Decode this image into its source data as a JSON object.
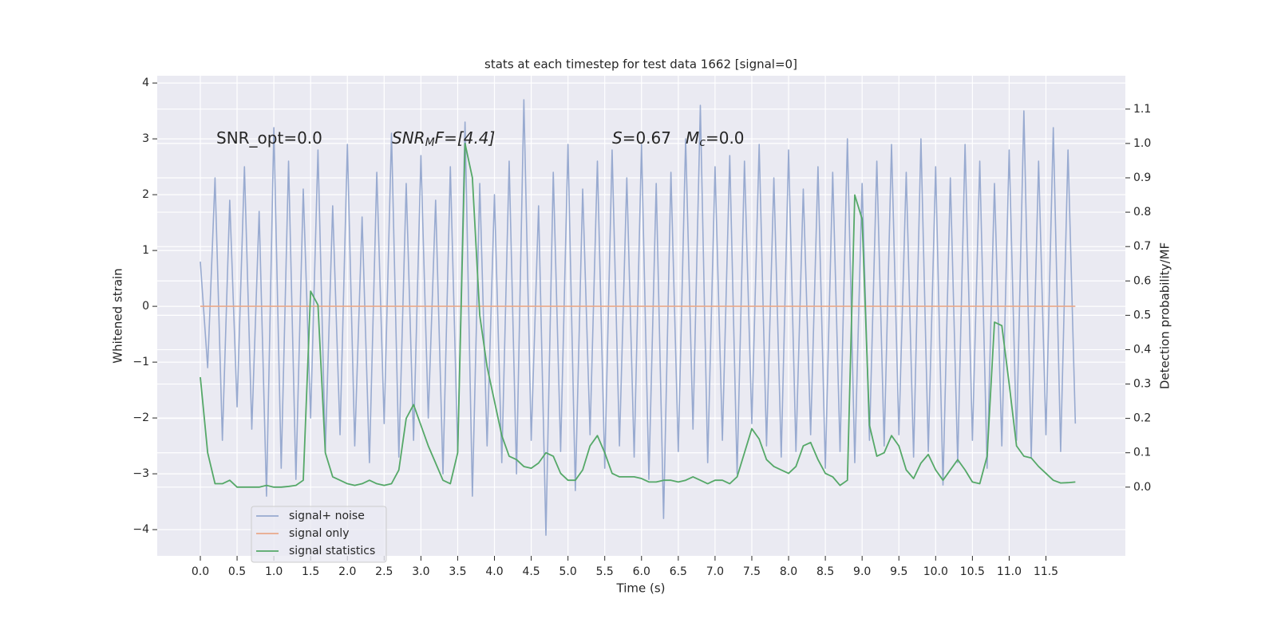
{
  "chart_data": {
    "type": "line",
    "title": "stats at each timestep for test data 1662 [signal=0]",
    "xlabel": "Time (s)",
    "ylabel": "Whitened strain",
    "y2label": "Detection probability/MF",
    "annotations": [
      [
        {
          "text": "SNR_opt=0.0",
          "style": "normal"
        }
      ],
      [
        {
          "text": "SNR",
          "style": "italic"
        },
        {
          "text": "M",
          "style": "italic-sub"
        },
        {
          "text": "F=[4.4]",
          "style": "italic-tail"
        }
      ],
      [
        {
          "text": "S",
          "style": "italic"
        },
        {
          "text": "=0.67",
          "style": "normal"
        }
      ],
      [
        {
          "text": "M",
          "style": "italic"
        },
        {
          "text": "c",
          "style": "italic-sub"
        },
        {
          "text": "=0.0",
          "style": "normal"
        }
      ]
    ],
    "x": [
      0,
      0.1,
      0.2,
      0.3,
      0.4,
      0.5,
      0.6,
      0.7,
      0.8,
      0.9,
      1,
      1.1,
      1.2,
      1.3,
      1.4,
      1.5,
      1.6,
      1.7,
      1.8,
      1.9,
      2,
      2.1,
      2.2,
      2.3,
      2.4,
      2.5,
      2.6,
      2.7,
      2.8,
      2.9,
      3,
      3.1,
      3.2,
      3.3,
      3.4,
      3.5,
      3.6,
      3.7,
      3.8,
      3.9,
      4,
      4.1,
      4.2,
      4.3,
      4.4,
      4.5,
      4.6,
      4.7,
      4.8,
      4.9,
      5,
      5.1,
      5.2,
      5.3,
      5.4,
      5.5,
      5.6,
      5.7,
      5.8,
      5.9,
      6,
      6.1,
      6.2,
      6.3,
      6.4,
      6.5,
      6.6,
      6.7,
      6.8,
      6.9,
      7,
      7.1,
      7.2,
      7.3,
      7.4,
      7.5,
      7.6,
      7.7,
      7.8,
      7.9,
      8,
      8.1,
      8.2,
      8.3,
      8.4,
      8.5,
      8.6,
      8.7,
      8.8,
      8.9,
      9,
      9.1,
      9.2,
      9.3,
      9.4,
      9.5,
      9.6,
      9.7,
      9.8,
      9.9,
      10,
      10.1,
      10.2,
      10.3,
      10.4,
      10.5,
      10.6,
      10.7,
      10.8,
      10.9,
      11,
      11.1,
      11.2,
      11.3,
      11.4,
      11.5,
      11.6,
      11.7,
      11.8,
      11.9
    ],
    "series": [
      {
        "name": "signal+ noise",
        "color": "#98aad0",
        "axis": "y",
        "values": [
          0.8,
          -1.1,
          2.3,
          -2.4,
          1.9,
          -1.8,
          2.5,
          -2.2,
          1.7,
          -3.4,
          3.2,
          -2.9,
          2.6,
          -3.1,
          2.1,
          -2.0,
          2.8,
          -2.6,
          1.8,
          -2.3,
          2.9,
          -2.5,
          1.6,
          -2.8,
          2.4,
          -2.1,
          3.1,
          -2.7,
          2.2,
          -2.4,
          2.7,
          -2.0,
          1.9,
          -3.0,
          2.5,
          -2.6,
          3.3,
          -3.4,
          2.2,
          -2.5,
          2.0,
          -2.8,
          2.6,
          -3.0,
          3.7,
          -2.4,
          1.8,
          -4.1,
          2.4,
          -2.6,
          2.9,
          -3.3,
          2.1,
          -2.3,
          2.6,
          -2.9,
          2.8,
          -2.5,
          2.3,
          -2.7,
          2.9,
          -3.1,
          2.2,
          -3.8,
          2.4,
          -2.6,
          3.0,
          -2.2,
          3.6,
          -2.8,
          2.5,
          -2.4,
          2.7,
          -3.0,
          2.6,
          -2.1,
          2.9,
          -2.5,
          2.3,
          -2.7,
          2.8,
          -2.6,
          2.1,
          -2.3,
          2.5,
          -2.9,
          2.4,
          -2.6,
          3.0,
          -2.8,
          2.2,
          -2.4,
          2.6,
          -2.5,
          2.9,
          -2.3,
          2.4,
          -2.7,
          3.0,
          -2.6,
          2.5,
          -3.2,
          2.3,
          -2.8,
          2.9,
          -2.4,
          2.6,
          -2.9,
          2.2,
          -2.5,
          2.8,
          -2.4,
          3.5,
          -2.7,
          2.6,
          -2.3,
          3.2,
          -2.6,
          2.8,
          -2.1
        ]
      },
      {
        "name": "signal only",
        "color": "#e9a98a",
        "axis": "y",
        "x": [
          0,
          11.9
        ],
        "values": [
          0,
          0
        ]
      },
      {
        "name": "signal statistics",
        "color": "#55a868",
        "axis": "y2",
        "values": [
          0.32,
          0.1,
          0.01,
          0.01,
          0.02,
          0.0,
          0.0,
          0.0,
          0.0,
          0.005,
          0.0,
          0.0,
          0.002,
          0.005,
          0.02,
          0.57,
          0.53,
          0.1,
          0.03,
          0.02,
          0.01,
          0.005,
          0.01,
          0.02,
          0.01,
          0.005,
          0.01,
          0.05,
          0.2,
          0.24,
          0.18,
          0.12,
          0.07,
          0.02,
          0.01,
          0.1,
          1.0,
          0.9,
          0.5,
          0.35,
          0.25,
          0.15,
          0.09,
          0.08,
          0.06,
          0.055,
          0.07,
          0.1,
          0.09,
          0.04,
          0.02,
          0.02,
          0.05,
          0.12,
          0.15,
          0.1,
          0.04,
          0.03,
          0.03,
          0.03,
          0.025,
          0.015,
          0.015,
          0.02,
          0.02,
          0.015,
          0.02,
          0.03,
          0.02,
          0.01,
          0.02,
          0.02,
          0.01,
          0.03,
          0.1,
          0.17,
          0.14,
          0.08,
          0.06,
          0.05,
          0.04,
          0.06,
          0.12,
          0.13,
          0.08,
          0.04,
          0.03,
          0.005,
          0.02,
          0.85,
          0.78,
          0.18,
          0.09,
          0.1,
          0.15,
          0.12,
          0.05,
          0.025,
          0.07,
          0.095,
          0.05,
          0.02,
          0.05,
          0.08,
          0.05,
          0.015,
          0.01,
          0.09,
          0.48,
          0.47,
          0.3,
          0.12,
          0.09,
          0.085,
          0.06,
          0.04,
          0.02,
          0.012,
          0.013,
          0.015
        ]
      }
    ],
    "xlim": [
      -0.586,
      12.58
    ],
    "xticks": [
      {
        "value": 0,
        "label": "0.0"
      },
      {
        "value": 0.5,
        "label": "0.5"
      },
      {
        "value": 1,
        "label": "1.0"
      },
      {
        "value": 1.5,
        "label": "1.5"
      },
      {
        "value": 2,
        "label": "2.0"
      },
      {
        "value": 2.5,
        "label": "2.5"
      },
      {
        "value": 3,
        "label": "3.0"
      },
      {
        "value": 3.5,
        "label": "3.5"
      },
      {
        "value": 4,
        "label": "4.0"
      },
      {
        "value": 4.5,
        "label": "4.5"
      },
      {
        "value": 5,
        "label": "5.0"
      },
      {
        "value": 5.5,
        "label": "5.5"
      },
      {
        "value": 6,
        "label": "6.0"
      },
      {
        "value": 6.5,
        "label": "6.5"
      },
      {
        "value": 7,
        "label": "7.0"
      },
      {
        "value": 7.5,
        "label": "7.5"
      },
      {
        "value": 8,
        "label": "8.0"
      },
      {
        "value": 8.5,
        "label": "8.5"
      },
      {
        "value": 9,
        "label": "9.0"
      },
      {
        "value": 9.5,
        "label": "9.5"
      },
      {
        "value": 10,
        "label": "10.0"
      },
      {
        "value": 10.5,
        "label": "10.5"
      },
      {
        "value": 11,
        "label": "11.0"
      },
      {
        "value": 11.5,
        "label": "11.5"
      }
    ],
    "ylim": [
      -4.47,
      4.13
    ],
    "yticks": [
      {
        "value": -4,
        "label": "−4"
      },
      {
        "value": -3,
        "label": "−3"
      },
      {
        "value": -2,
        "label": "−2"
      },
      {
        "value": -1,
        "label": "−1"
      },
      0,
      1,
      2,
      3,
      4
    ],
    "y2lim": [
      -0.2,
      1.197
    ],
    "y2ticks": [
      {
        "value": 0,
        "label": "0.0"
      },
      {
        "value": 0.1,
        "label": "0.1"
      },
      {
        "value": 0.2,
        "label": "0.2"
      },
      {
        "value": 0.3,
        "label": "0.3"
      },
      {
        "value": 0.4,
        "label": "0.4"
      },
      {
        "value": 0.5,
        "label": "0.5"
      },
      {
        "value": 0.6,
        "label": "0.6"
      },
      {
        "value": 0.7,
        "label": "0.7"
      },
      {
        "value": 0.8,
        "label": "0.8"
      },
      {
        "value": 0.9,
        "label": "0.9"
      },
      {
        "value": 1,
        "label": "1.0"
      },
      {
        "value": 1.1,
        "label": "1.1"
      }
    ],
    "grid": true,
    "legend": "lower left"
  }
}
